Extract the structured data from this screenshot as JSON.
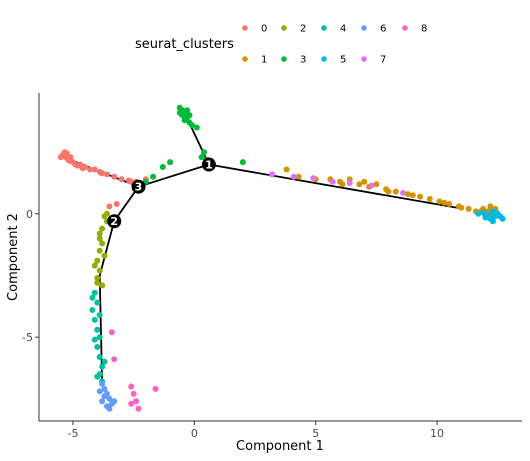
{
  "chart_data": {
    "type": "scatter",
    "xlabel": "Component 1",
    "ylabel": "Component 2",
    "xlim": [
      -6.4,
      13.5
    ],
    "ylim": [
      -8.4,
      4.9
    ],
    "x_ticks": [
      -5,
      0,
      5,
      10
    ],
    "y_ticks": [
      -5,
      0
    ],
    "grid": false,
    "legend": {
      "title": "seurat_clusters",
      "position": "top",
      "entries": [
        "0",
        "1",
        "2",
        "3",
        "4",
        "5",
        "6",
        "7",
        "8"
      ]
    },
    "series": [
      {
        "name": "0",
        "color": "#F8766D",
        "points": [
          [
            -5.4,
            2.4
          ],
          [
            -5.3,
            2.3
          ],
          [
            -5.2,
            2.2
          ],
          [
            -5.1,
            2.3
          ],
          [
            -5.0,
            2.1
          ],
          [
            -4.9,
            2.0
          ],
          [
            -4.7,
            2.0
          ],
          [
            -4.5,
            1.9
          ],
          [
            -4.3,
            1.8
          ],
          [
            -4.1,
            1.8
          ],
          [
            -3.9,
            1.7
          ],
          [
            -3.6,
            1.6
          ],
          [
            -3.3,
            1.5
          ],
          [
            -3.0,
            1.4
          ],
          [
            -2.7,
            1.35
          ],
          [
            -2.4,
            1.3
          ],
          [
            -2.2,
            1.2
          ],
          [
            -2.6,
            1.3
          ],
          [
            -5.35,
            2.5
          ],
          [
            -5.45,
            2.35
          ],
          [
            -5.25,
            2.45
          ],
          [
            -4.8,
            1.95
          ],
          [
            -3.2,
            0.4
          ],
          [
            -3.5,
            0.3
          ],
          [
            -2.0,
            1.4
          ],
          [
            -5.5,
            2.3
          ],
          [
            -5.15,
            2.15
          ],
          [
            -4.6,
            1.85
          ],
          [
            -3.8,
            1.65
          ]
        ]
      },
      {
        "name": "1",
        "color": "#D39200",
        "points": [
          [
            3.8,
            1.8
          ],
          [
            4.3,
            1.5
          ],
          [
            5.0,
            1.4
          ],
          [
            5.6,
            1.4
          ],
          [
            6.0,
            1.3
          ],
          [
            6.4,
            1.4
          ],
          [
            6.8,
            1.2
          ],
          [
            7.2,
            1.1
          ],
          [
            7.5,
            1.2
          ],
          [
            7.9,
            1.0
          ],
          [
            8.3,
            0.9
          ],
          [
            8.8,
            0.8
          ],
          [
            9.3,
            0.7
          ],
          [
            9.7,
            0.6
          ],
          [
            10.1,
            0.5
          ],
          [
            10.5,
            0.4
          ],
          [
            10.9,
            0.3
          ],
          [
            11.3,
            0.2
          ],
          [
            11.6,
            0.1
          ],
          [
            11.9,
            0.2
          ],
          [
            12.1,
            0.1
          ],
          [
            12.3,
            0.0
          ],
          [
            12.4,
            0.2
          ],
          [
            12.2,
            0.3
          ],
          [
            11.8,
            0.1
          ],
          [
            12.0,
            -0.1
          ],
          [
            6.1,
            1.2
          ],
          [
            7.0,
            1.3
          ],
          [
            8.0,
            0.9
          ],
          [
            9.0,
            0.75
          ],
          [
            10.3,
            0.45
          ],
          [
            11.0,
            0.25
          ]
        ]
      },
      {
        "name": "2",
        "color": "#93AA00",
        "points": [
          [
            -3.7,
            -0.1
          ],
          [
            -3.6,
            -0.3
          ],
          [
            -3.8,
            -0.6
          ],
          [
            -3.9,
            -1.0
          ],
          [
            -3.9,
            -1.5
          ],
          [
            -4.0,
            -1.9
          ],
          [
            -3.9,
            -2.3
          ],
          [
            -4.0,
            -2.6
          ],
          [
            -3.8,
            -2.9
          ],
          [
            -3.6,
            0.0
          ],
          [
            -3.8,
            -1.2
          ],
          [
            -4.1,
            -2.1
          ],
          [
            -3.7,
            -1.7
          ],
          [
            -3.9,
            -0.8
          ],
          [
            -4.0,
            -2.8
          ]
        ]
      },
      {
        "name": "3",
        "color": "#00BA38",
        "points": [
          [
            -0.6,
            4.3
          ],
          [
            -0.5,
            4.2
          ],
          [
            -0.4,
            4.1
          ],
          [
            -0.5,
            4.0
          ],
          [
            -0.3,
            3.9
          ],
          [
            -0.4,
            3.8
          ],
          [
            -0.2,
            3.7
          ],
          [
            -0.3,
            4.2
          ],
          [
            -0.1,
            3.6
          ],
          [
            0.4,
            2.5
          ],
          [
            0.3,
            2.3
          ],
          [
            0.5,
            2.2
          ],
          [
            -1.0,
            2.1
          ],
          [
            -1.3,
            1.9
          ],
          [
            -1.7,
            1.5
          ],
          [
            -2.0,
            1.3
          ],
          [
            2.0,
            2.1
          ],
          [
            -0.6,
            4.1
          ],
          [
            -0.2,
            4.0
          ],
          [
            0.1,
            3.5
          ]
        ]
      },
      {
        "name": "4",
        "color": "#00C19F",
        "points": [
          [
            -4.1,
            -3.2
          ],
          [
            -4.0,
            -3.6
          ],
          [
            -4.2,
            -3.9
          ],
          [
            -4.1,
            -4.3
          ],
          [
            -4.0,
            -4.7
          ],
          [
            -3.9,
            -5.0
          ],
          [
            -4.0,
            -5.4
          ],
          [
            -3.9,
            -5.8
          ],
          [
            -3.8,
            -6.2
          ],
          [
            -3.9,
            -6.5
          ],
          [
            -3.8,
            -6.8
          ],
          [
            -4.2,
            -3.4
          ],
          [
            -3.9,
            -4.1
          ],
          [
            -4.1,
            -5.1
          ],
          [
            -3.7,
            -6.0
          ],
          [
            -4.0,
            -6.6
          ]
        ]
      },
      {
        "name": "5",
        "color": "#00B9E3",
        "points": [
          [
            11.9,
            0.05
          ],
          [
            12.1,
            -0.05
          ],
          [
            12.3,
            0.1
          ],
          [
            12.4,
            -0.1
          ],
          [
            12.2,
            -0.2
          ],
          [
            12.5,
            0.0
          ],
          [
            12.6,
            -0.1
          ],
          [
            12.3,
            -0.3
          ],
          [
            11.7,
            0.0
          ],
          [
            12.0,
            -0.15
          ],
          [
            12.7,
            -0.2
          ],
          [
            12.45,
            0.05
          ]
        ]
      },
      {
        "name": "6",
        "color": "#619CFF",
        "points": [
          [
            -3.8,
            -6.9
          ],
          [
            -3.7,
            -7.1
          ],
          [
            -3.6,
            -7.3
          ],
          [
            -3.5,
            -7.5
          ],
          [
            -3.4,
            -7.7
          ],
          [
            -3.6,
            -7.8
          ],
          [
            -3.7,
            -7.4
          ],
          [
            -3.9,
            -7.2
          ],
          [
            -3.3,
            -7.6
          ],
          [
            -3.5,
            -7.9
          ],
          [
            -3.8,
            -7.6
          ]
        ]
      },
      {
        "name": "7",
        "color": "#DB72FB",
        "points": [
          [
            3.2,
            1.6
          ],
          [
            4.1,
            1.5
          ],
          [
            4.9,
            1.45
          ],
          [
            5.7,
            1.3
          ],
          [
            6.4,
            1.25
          ],
          [
            7.3,
            1.15
          ],
          [
            8.6,
            0.85
          ]
        ]
      },
      {
        "name": "8",
        "color": "#FF61C3",
        "points": [
          [
            -2.6,
            -7.0
          ],
          [
            -2.5,
            -7.3
          ],
          [
            -2.4,
            -7.6
          ],
          [
            -2.3,
            -7.9
          ],
          [
            -1.6,
            -7.1
          ],
          [
            -2.6,
            -7.7
          ],
          [
            -3.4,
            -4.8
          ],
          [
            -3.3,
            -5.9
          ]
        ]
      }
    ],
    "trajectory": {
      "nodes": [
        {
          "label": "1",
          "x": 0.6,
          "y": 2.0
        },
        {
          "label": "2",
          "x": -3.3,
          "y": -0.3
        },
        {
          "label": "3",
          "x": -2.3,
          "y": 1.1
        }
      ],
      "edges": [
        [
          [
            -5.4,
            2.3
          ],
          [
            -2.3,
            1.1
          ]
        ],
        [
          [
            -2.3,
            1.1
          ],
          [
            0.6,
            2.0
          ]
        ],
        [
          [
            0.6,
            2.0
          ],
          [
            -0.4,
            4.1
          ]
        ],
        [
          [
            0.6,
            2.0
          ],
          [
            11.1,
            0.2
          ]
        ],
        [
          [
            -2.3,
            1.1
          ],
          [
            -3.3,
            -0.3
          ]
        ],
        [
          [
            -3.3,
            -0.3
          ],
          [
            -3.9,
            -2.5
          ],
          [
            -3.8,
            -6.8
          ]
        ]
      ]
    }
  }
}
